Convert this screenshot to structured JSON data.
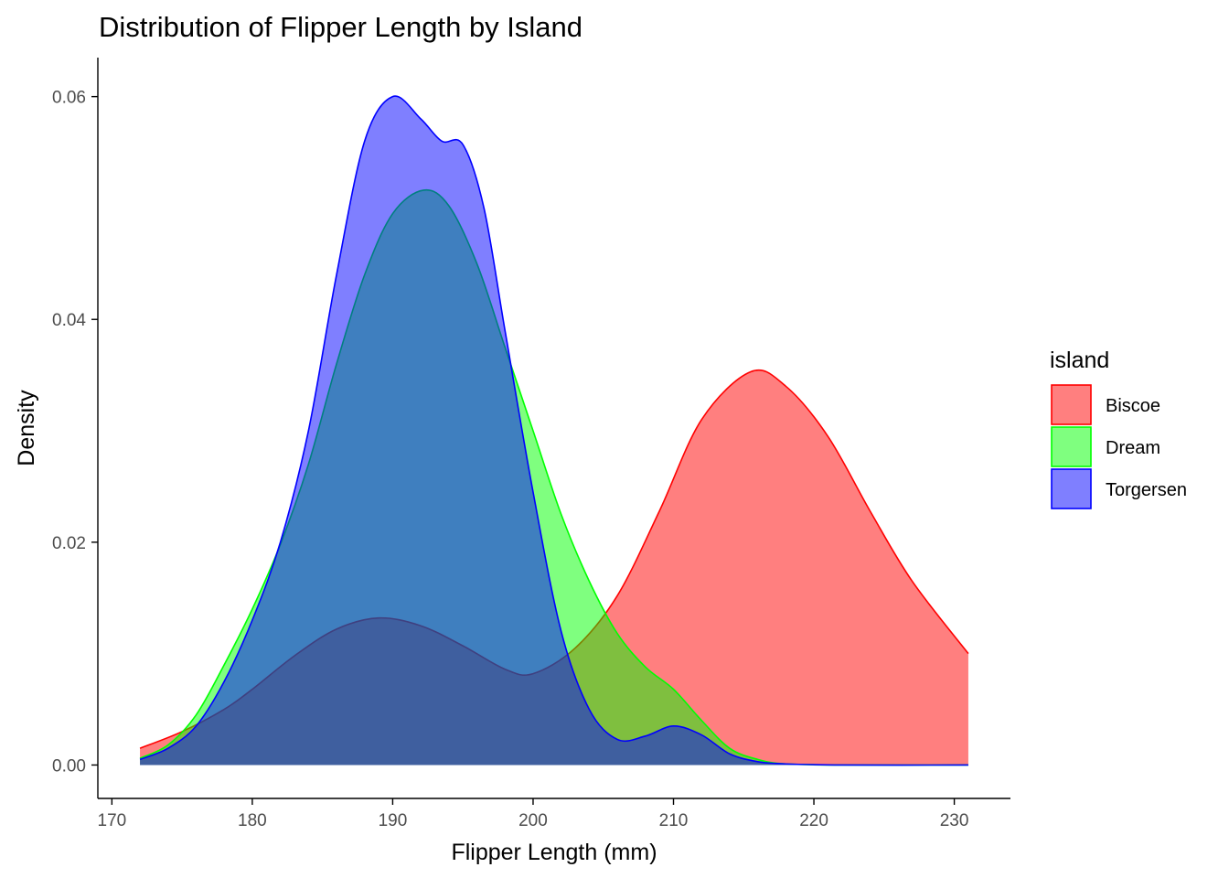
{
  "chart_data": {
    "type": "area",
    "subtype": "density",
    "title": "Distribution of Flipper Length by Island",
    "xlabel": "Flipper Length (mm)",
    "ylabel": "Density",
    "xlim": [
      169,
      234
    ],
    "ylim": [
      -0.003,
      0.0635
    ],
    "x_ticks": [
      170,
      180,
      190,
      200,
      210,
      220,
      230
    ],
    "y_ticks": [
      0.0,
      0.02,
      0.04,
      0.06
    ],
    "x_tick_labels": [
      "170",
      "180",
      "190",
      "200",
      "210",
      "220",
      "230"
    ],
    "y_tick_labels": [
      "0.00",
      "0.02",
      "0.04",
      "0.06"
    ],
    "grid": false,
    "legend": {
      "title": "island",
      "position": "right"
    },
    "series": [
      {
        "name": "Biscoe",
        "color": "#ff0000",
        "fill_opacity": 0.5,
        "x": [
          172,
          175,
          178,
          180,
          183,
          186,
          189,
          192,
          195,
          198,
          200,
          203,
          206,
          209,
          212,
          215.5,
          218,
          221,
          224,
          227,
          231
        ],
        "y": [
          0.0015,
          0.003,
          0.005,
          0.0068,
          0.0098,
          0.0122,
          0.0132,
          0.0125,
          0.0107,
          0.0086,
          0.0082,
          0.0105,
          0.0152,
          0.0228,
          0.031,
          0.0353,
          0.034,
          0.0295,
          0.0228,
          0.0165,
          0.01
        ]
      },
      {
        "name": "Dream",
        "color": "#00ff00",
        "fill_opacity": 0.5,
        "x": [
          172,
          174,
          176,
          178,
          180,
          182,
          184,
          186,
          188,
          190,
          192.2,
          194,
          196,
          198,
          200,
          202,
          204,
          206,
          208,
          210,
          212,
          214,
          216,
          218,
          222,
          231
        ],
        "y": [
          0.0006,
          0.0018,
          0.0045,
          0.009,
          0.014,
          0.0198,
          0.027,
          0.036,
          0.044,
          0.0495,
          0.0516,
          0.0502,
          0.045,
          0.0375,
          0.03,
          0.0225,
          0.0165,
          0.0118,
          0.0088,
          0.0068,
          0.004,
          0.0015,
          0.0005,
          0.0001,
          0.0,
          0.0
        ]
      },
      {
        "name": "Torgersen",
        "color": "#0000ff",
        "fill_opacity": 0.5,
        "x": [
          172,
          174,
          176,
          178,
          180,
          182,
          184,
          186,
          188,
          190,
          192,
          193.5,
          195,
          196.5,
          198,
          200,
          202,
          204,
          206,
          208,
          210,
          212,
          214,
          216,
          218,
          222,
          231
        ],
        "y": [
          0.0005,
          0.0015,
          0.0035,
          0.0075,
          0.013,
          0.02,
          0.03,
          0.044,
          0.056,
          0.06,
          0.058,
          0.056,
          0.0557,
          0.05,
          0.039,
          0.0245,
          0.012,
          0.005,
          0.0023,
          0.0026,
          0.0035,
          0.0027,
          0.001,
          0.0003,
          0.0001,
          0.0,
          0.0
        ]
      }
    ]
  }
}
